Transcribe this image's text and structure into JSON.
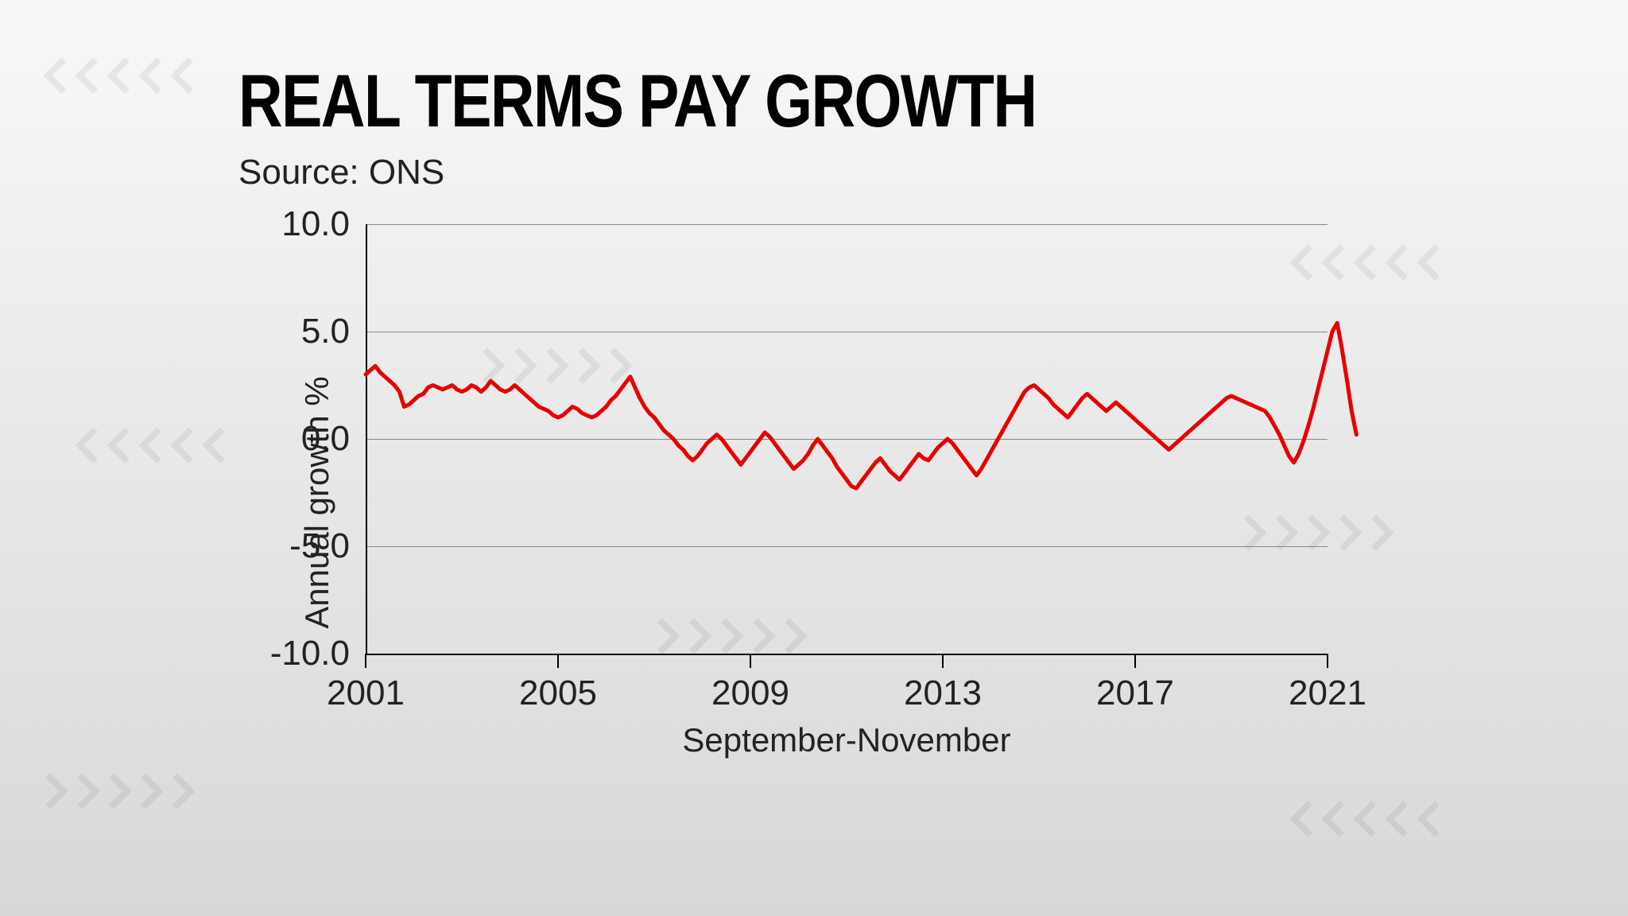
{
  "chart": {
    "type": "line",
    "title": "REAL TERMS PAY GROWTH",
    "title_fontsize": 94,
    "source": "Source: ONS",
    "source_fontsize": 44,
    "ylabel": "Annual growth %",
    "xlabel": "September-November",
    "label_fontsize": 42,
    "tick_fontsize": 44,
    "line_color": "#e60000",
    "line_width": 5,
    "grid_color": "#888888",
    "axis_color": "#000000",
    "background_gradient": [
      "#f8f8f8",
      "#d8d8d8"
    ],
    "ylim": [
      -10,
      10
    ],
    "yticks": [
      -10.0,
      -5.0,
      0.0,
      5.0,
      10.0
    ],
    "ytick_labels": [
      "-10.0",
      "-5.0",
      "0.0",
      "5.0",
      "10.0"
    ],
    "xlim": [
      2001,
      2021
    ],
    "xticks": [
      2001,
      2005,
      2009,
      2013,
      2017,
      2021
    ],
    "xtick_labels": [
      "2001",
      "2005",
      "2009",
      "2013",
      "2017",
      "2021"
    ],
    "series": {
      "x": [
        2001,
        2001.1,
        2001.2,
        2001.3,
        2001.4,
        2001.5,
        2001.6,
        2001.7,
        2001.8,
        2001.9,
        2002,
        2002.1,
        2002.2,
        2002.3,
        2002.4,
        2002.5,
        2002.6,
        2002.7,
        2002.8,
        2002.9,
        2003,
        2003.1,
        2003.2,
        2003.3,
        2003.4,
        2003.5,
        2003.6,
        2003.7,
        2003.8,
        2003.9,
        2004,
        2004.1,
        2004.2,
        2004.3,
        2004.4,
        2004.5,
        2004.6,
        2004.7,
        2004.8,
        2004.9,
        2005,
        2005.1,
        2005.2,
        2005.3,
        2005.4,
        2005.5,
        2005.6,
        2005.7,
        2005.8,
        2005.9,
        2006,
        2006.1,
        2006.2,
        2006.3,
        2006.4,
        2006.5,
        2006.6,
        2006.7,
        2006.8,
        2006.9,
        2007,
        2007.1,
        2007.2,
        2007.3,
        2007.4,
        2007.5,
        2007.6,
        2007.7,
        2007.8,
        2007.9,
        2008,
        2008.1,
        2008.2,
        2008.3,
        2008.4,
        2008.5,
        2008.6,
        2008.7,
        2008.8,
        2008.9,
        2009,
        2009.1,
        2009.2,
        2009.3,
        2009.4,
        2009.5,
        2009.6,
        2009.7,
        2009.8,
        2009.9,
        2010,
        2010.1,
        2010.2,
        2010.3,
        2010.4,
        2010.5,
        2010.6,
        2010.7,
        2010.8,
        2010.9,
        2011,
        2011.1,
        2011.2,
        2011.3,
        2011.4,
        2011.5,
        2011.6,
        2011.7,
        2011.8,
        2011.9,
        2012,
        2012.1,
        2012.2,
        2012.3,
        2012.4,
        2012.5,
        2012.6,
        2012.7,
        2012.8,
        2012.9,
        2013,
        2013.1,
        2013.2,
        2013.3,
        2013.4,
        2013.5,
        2013.6,
        2013.7,
        2013.8,
        2013.9,
        2014,
        2014.1,
        2014.2,
        2014.3,
        2014.4,
        2014.5,
        2014.6,
        2014.7,
        2014.8,
        2014.9,
        2015,
        2015.1,
        2015.2,
        2015.3,
        2015.4,
        2015.5,
        2015.6,
        2015.7,
        2015.8,
        2015.9,
        2016,
        2016.1,
        2016.2,
        2016.3,
        2016.4,
        2016.5,
        2016.6,
        2016.7,
        2016.8,
        2016.9,
        2017,
        2017.1,
        2017.2,
        2017.3,
        2017.4,
        2017.5,
        2017.6,
        2017.7,
        2017.8,
        2017.9,
        2018,
        2018.1,
        2018.2,
        2018.3,
        2018.4,
        2018.5,
        2018.6,
        2018.7,
        2018.8,
        2018.9,
        2019,
        2019.1,
        2019.2,
        2019.3,
        2019.4,
        2019.5,
        2019.6,
        2019.7,
        2019.8,
        2019.9,
        2020,
        2020.1,
        2020.2,
        2020.3,
        2020.4,
        2020.5,
        2020.6,
        2020.7,
        2020.8,
        2020.9,
        2021,
        2021.1,
        2021.2,
        2021.3,
        2021.4,
        2021.5,
        2021.6
      ],
      "y": [
        3.0,
        3.2,
        3.4,
        3.1,
        2.9,
        2.7,
        2.5,
        2.2,
        1.5,
        1.6,
        1.8,
        2.0,
        2.1,
        2.4,
        2.5,
        2.4,
        2.3,
        2.4,
        2.5,
        2.3,
        2.2,
        2.3,
        2.5,
        2.4,
        2.2,
        2.4,
        2.7,
        2.5,
        2.3,
        2.2,
        2.3,
        2.5,
        2.3,
        2.1,
        1.9,
        1.7,
        1.5,
        1.4,
        1.3,
        1.1,
        1.0,
        1.1,
        1.3,
        1.5,
        1.4,
        1.2,
        1.1,
        1.0,
        1.1,
        1.3,
        1.5,
        1.8,
        2.0,
        2.3,
        2.6,
        2.9,
        2.4,
        1.9,
        1.5,
        1.2,
        1.0,
        0.7,
        0.4,
        0.2,
        0.0,
        -0.3,
        -0.5,
        -0.8,
        -1.0,
        -0.8,
        -0.5,
        -0.2,
        0.0,
        0.2,
        0.0,
        -0.3,
        -0.6,
        -0.9,
        -1.2,
        -0.9,
        -0.6,
        -0.3,
        0.0,
        0.3,
        0.1,
        -0.2,
        -0.5,
        -0.8,
        -1.1,
        -1.4,
        -1.2,
        -1.0,
        -0.7,
        -0.3,
        0.0,
        -0.3,
        -0.6,
        -0.9,
        -1.3,
        -1.6,
        -1.9,
        -2.2,
        -2.3,
        -2.0,
        -1.7,
        -1.4,
        -1.1,
        -0.9,
        -1.2,
        -1.5,
        -1.7,
        -1.9,
        -1.6,
        -1.3,
        -1.0,
        -0.7,
        -0.9,
        -1.0,
        -0.7,
        -0.4,
        -0.2,
        0.0,
        -0.2,
        -0.5,
        -0.8,
        -1.1,
        -1.4,
        -1.7,
        -1.4,
        -1.0,
        -0.6,
        -0.2,
        0.2,
        0.6,
        1.0,
        1.4,
        1.8,
        2.2,
        2.4,
        2.5,
        2.3,
        2.1,
        1.9,
        1.6,
        1.4,
        1.2,
        1.0,
        1.3,
        1.6,
        1.9,
        2.1,
        1.9,
        1.7,
        1.5,
        1.3,
        1.5,
        1.7,
        1.5,
        1.3,
        1.1,
        0.9,
        0.7,
        0.5,
        0.3,
        0.1,
        -0.1,
        -0.3,
        -0.5,
        -0.3,
        -0.1,
        0.1,
        0.3,
        0.5,
        0.7,
        0.9,
        1.1,
        1.3,
        1.5,
        1.7,
        1.9,
        2.0,
        1.9,
        1.8,
        1.7,
        1.6,
        1.5,
        1.4,
        1.3,
        1.0,
        0.6,
        0.2,
        -0.3,
        -0.8,
        -1.1,
        -0.7,
        -0.1,
        0.6,
        1.4,
        2.3,
        3.2,
        4.1,
        5.0,
        5.4,
        4.2,
        2.8,
        1.3,
        0.2
      ]
    }
  }
}
